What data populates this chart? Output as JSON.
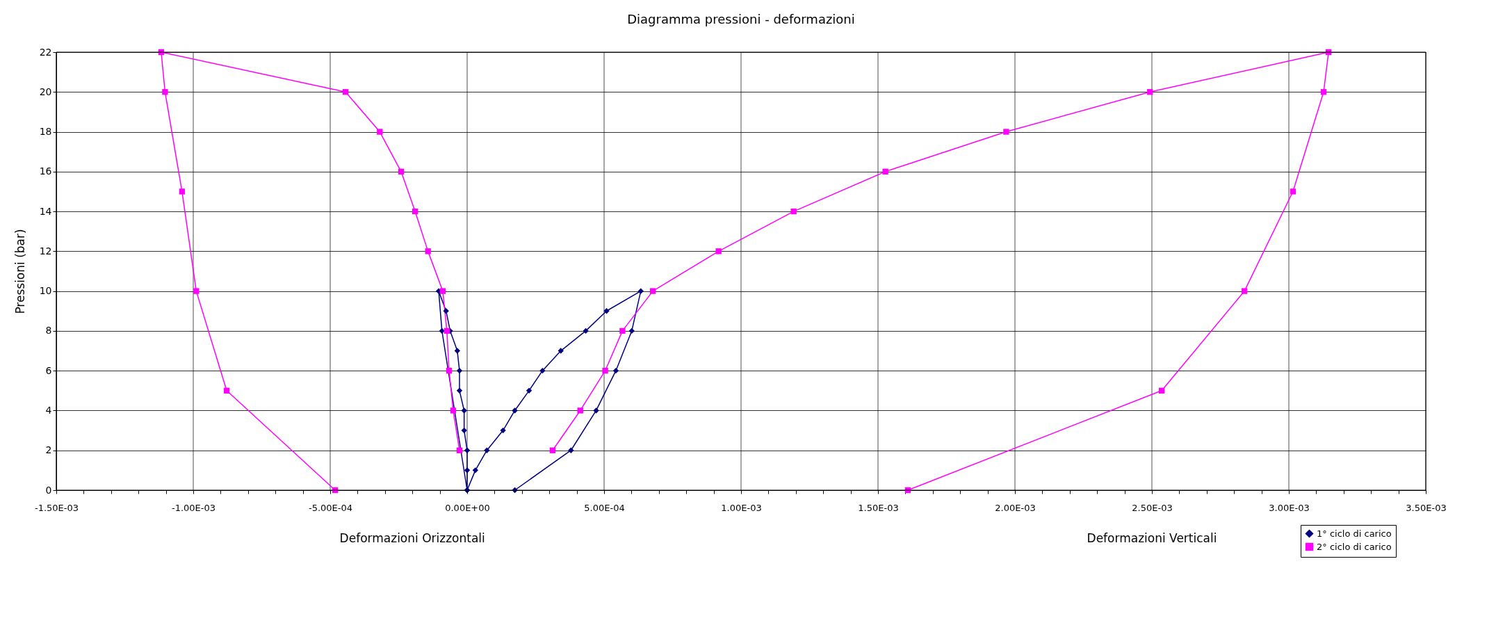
{
  "chart_data": {
    "type": "line",
    "title": "Diagramma pressioni - deformazioni",
    "xlabel": "Deformazioni Orizzontali",
    "ylabel": "Pressioni (bar)",
    "annotations": [
      "Deformazioni Verticali"
    ],
    "xlim": [
      -0.0015,
      0.0035
    ],
    "ylim": [
      0,
      22
    ],
    "xticks": [
      {
        "value": -0.0015,
        "label": "-1.50E-03"
      },
      {
        "value": -0.0014,
        "label": null
      },
      {
        "value": -0.0013,
        "label": null
      },
      {
        "value": -0.0012,
        "label": null
      },
      {
        "value": -0.0011,
        "label": null
      },
      {
        "value": -0.001,
        "label": "-1.00E-03"
      },
      {
        "value": -0.0009,
        "label": null
      },
      {
        "value": -0.0008,
        "label": null
      },
      {
        "value": -0.0007,
        "label": null
      },
      {
        "value": -0.0006,
        "label": null
      },
      {
        "value": -0.0005,
        "label": "-5.00E-04"
      },
      {
        "value": -0.0004,
        "label": null
      },
      {
        "value": -0.0003,
        "label": null
      },
      {
        "value": -0.0002,
        "label": null
      },
      {
        "value": -0.0001,
        "label": null
      },
      {
        "value": 0,
        "label": "0.00E+00"
      },
      {
        "value": 0.0001,
        "label": null
      },
      {
        "value": 0.0002,
        "label": null
      },
      {
        "value": 0.0003,
        "label": null
      },
      {
        "value": 0.0004,
        "label": null
      },
      {
        "value": 0.0005,
        "label": "5.00E-04"
      },
      {
        "value": 0.0006,
        "label": null
      },
      {
        "value": 0.0007,
        "label": null
      },
      {
        "value": 0.0008,
        "label": null
      },
      {
        "value": 0.0009,
        "label": null
      },
      {
        "value": 0.001,
        "label": "1.00E-03"
      },
      {
        "value": 0.0011,
        "label": null
      },
      {
        "value": 0.0012,
        "label": null
      },
      {
        "value": 0.0013,
        "label": null
      },
      {
        "value": 0.0014,
        "label": null
      },
      {
        "value": 0.0015,
        "label": "1.50E-03"
      },
      {
        "value": 0.0016,
        "label": null
      },
      {
        "value": 0.0017,
        "label": null
      },
      {
        "value": 0.0018,
        "label": null
      },
      {
        "value": 0.0019,
        "label": null
      },
      {
        "value": 0.002,
        "label": "2.00E-03"
      },
      {
        "value": 0.0021,
        "label": null
      },
      {
        "value": 0.0022,
        "label": null
      },
      {
        "value": 0.0023,
        "label": null
      },
      {
        "value": 0.0024,
        "label": null
      },
      {
        "value": 0.0025,
        "label": "2.50E-03"
      },
      {
        "value": 0.0026,
        "label": null
      },
      {
        "value": 0.0027,
        "label": null
      },
      {
        "value": 0.0028,
        "label": null
      },
      {
        "value": 0.0029,
        "label": null
      },
      {
        "value": 0.003,
        "label": "3.00E-03"
      },
      {
        "value": 0.0031,
        "label": null
      },
      {
        "value": 0.0032,
        "label": null
      },
      {
        "value": 0.0033,
        "label": null
      },
      {
        "value": 0.0034,
        "label": null
      },
      {
        "value": 0.0035,
        "label": "3.50E-03"
      }
    ],
    "yticks": [
      0,
      2,
      4,
      6,
      8,
      10,
      12,
      14,
      16,
      18,
      20,
      22
    ],
    "grid": true,
    "legend": "bottom right",
    "line_style": "solid",
    "series": [
      {
        "name": "1° ciclo di carico",
        "color": "#000080",
        "marker": "diamond",
        "x": [
          0,
          0,
          0,
          -1.1e-05,
          -1.1e-05,
          -2.8e-05,
          -2.8e-05,
          -3.6e-05,
          -6.2e-05,
          -7.7e-05,
          -0.000104,
          -9.2e-05,
          0,
          3e-05,
          7.2e-05,
          0.000131,
          0.000174,
          0.000226,
          0.000275,
          0.000342,
          0.000433,
          0.000509,
          0.000634,
          0.000601,
          0.000543,
          0.000471,
          0.000379,
          0.000174
        ],
        "values": [
          0,
          1,
          2,
          3,
          4,
          5,
          6,
          7,
          8,
          9,
          10,
          8,
          0,
          1,
          2,
          3,
          4,
          5,
          6,
          7,
          8,
          9,
          10,
          8,
          6,
          4,
          2,
          0
        ]
      },
      {
        "name": "2° ciclo di carico",
        "color": "#ff00ff",
        "marker": "square",
        "x": [
          -2.8e-05,
          -5.1e-05,
          -6.6e-05,
          -7.4e-05,
          -8.9e-05,
          -0.000143,
          -0.00019,
          -0.000241,
          -0.000319,
          -0.000444,
          -0.001117,
          -0.001103,
          -0.001041,
          -0.000989,
          -0.000878,
          -0.000482
        ],
        "values": [
          2,
          4,
          6,
          8,
          10,
          12,
          14,
          16,
          18,
          20,
          22,
          20,
          15,
          10,
          5,
          0
        ]
      },
      {
        "color": "#ff00ff",
        "marker": "square",
        "x": [
          0.000312,
          0.000413,
          0.000504,
          0.000567,
          0.000678,
          0.000918,
          0.001192,
          0.001527,
          0.001968,
          0.002493,
          0.003145,
          0.003127,
          0.003015,
          0.002838,
          0.002536,
          0.001609
        ],
        "values": [
          2,
          4,
          6,
          8,
          10,
          12,
          14,
          16,
          18,
          20,
          22,
          20,
          15,
          10,
          5,
          0
        ]
      }
    ]
  }
}
